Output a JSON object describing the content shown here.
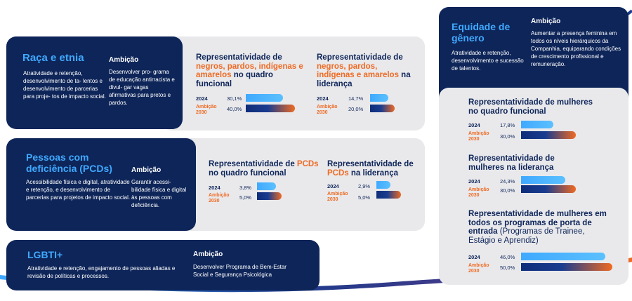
{
  "raca": {
    "title": "Raça e etnia",
    "desc": "Atratividade e retenção, desenvolvimento de ta- lentos e desenvolvimento de parcerias para proje- tos de impacto social.",
    "ambicao_label": "Ambição",
    "ambicao_text": "Desenvolver pro- grama de educação antirracista e divul- gar vagas afirmativas para pretos e pardos.",
    "metric1": {
      "title_a": "Representatividade de ",
      "title_hl": "negros, pardos, indígenas e amarelos",
      "title_b": " no quadro funcional",
      "year": "2024",
      "amb_line1": "Ambição",
      "amb_line2": "2030",
      "current": "30,1%",
      "target": "40,0%",
      "current_pct": 30.1,
      "target_pct": 40.0
    },
    "metric2": {
      "title_a": "Representatividade de ",
      "title_hl": "negros, pardos, indígenas e amarelos",
      "title_b": " na liderança",
      "year": "2024",
      "amb_line1": "Ambição",
      "amb_line2": "2030",
      "current": "14,7%",
      "target": "20,0%",
      "current_pct": 14.7,
      "target_pct": 20.0
    }
  },
  "pcd": {
    "title": "Pessoas com deficiência (PCDs)",
    "desc": "Acessibilidade física e digital, atratividade e retenção, e desenvolvimento de parcerias para projetos de impacto social.",
    "ambicao_label": "Ambição",
    "ambicao_text": "Garantir acessi- bilidade física e digital às pessoas com deficiência.",
    "metric1": {
      "title_a": "Representatividade de ",
      "title_hl": "PCDs",
      "title_b": " no quadro funcional",
      "year": "2024",
      "amb_line1": "Ambição",
      "amb_line2": "2030",
      "current": "3,8%",
      "target": "5,0%",
      "current_pct": 3.8,
      "target_pct": 5.0
    },
    "metric2": {
      "title_a": "Representatividade de ",
      "title_hl": "PCDs",
      "title_b": " na liderança",
      "year": "2024",
      "amb_line1": "Ambição",
      "amb_line2": "2030",
      "current": "2,9%",
      "target": "5,0%",
      "current_pct": 2.9,
      "target_pct": 5.0
    }
  },
  "lgbti": {
    "title": "LGBTI+",
    "desc": "Atratividade e retenção, engajamento de pessoas aliadas e revisão de políticas e processos.",
    "ambicao_label": "Ambição",
    "ambicao_text": "Desenvolver Programa de Bem-Estar Social e Segurança Psicológica"
  },
  "genero": {
    "title": "Equidade de gênero",
    "desc": "Atratividade e retenção, desenvolvimento e sucessão de talentos.",
    "ambicao_label": "Ambição",
    "ambicao_text": "Aumentar a presença feminina em todos os níveis hierárquicos da Companhia, equiparando condições de crescimento profissional e remuneração.",
    "metric1": {
      "title": "Representatividade de mulheres no quadro funcional",
      "year": "2024",
      "amb_line1": "Ambição",
      "amb_line2": "2030",
      "current": "17,8%",
      "target": "30,0%",
      "current_pct": 17.8,
      "target_pct": 30.0
    },
    "metric2": {
      "title": "Representatividade de mulheres na liderança",
      "year": "2024",
      "amb_line1": "Ambição",
      "amb_line2": "2030",
      "current": "24,3%",
      "target": "30,0%",
      "current_pct": 24.3,
      "target_pct": 30.0
    },
    "metric3": {
      "title": "Representatividade de mulheres em todos os programas de porta de entrada",
      "title_light": " (Programas de Trainee, Estágio e Aprendiz)",
      "year": "2024",
      "amb_line1": "Ambição",
      "amb_line2": "2030",
      "current": "46,0%",
      "target": "50,0%",
      "current_pct": 46.0,
      "target_pct": 50.0
    }
  },
  "colors": {
    "navy": "#0e2559",
    "blue": "#3fa9ff",
    "orange": "#ef6a22",
    "gray": "#e9e9ec"
  }
}
